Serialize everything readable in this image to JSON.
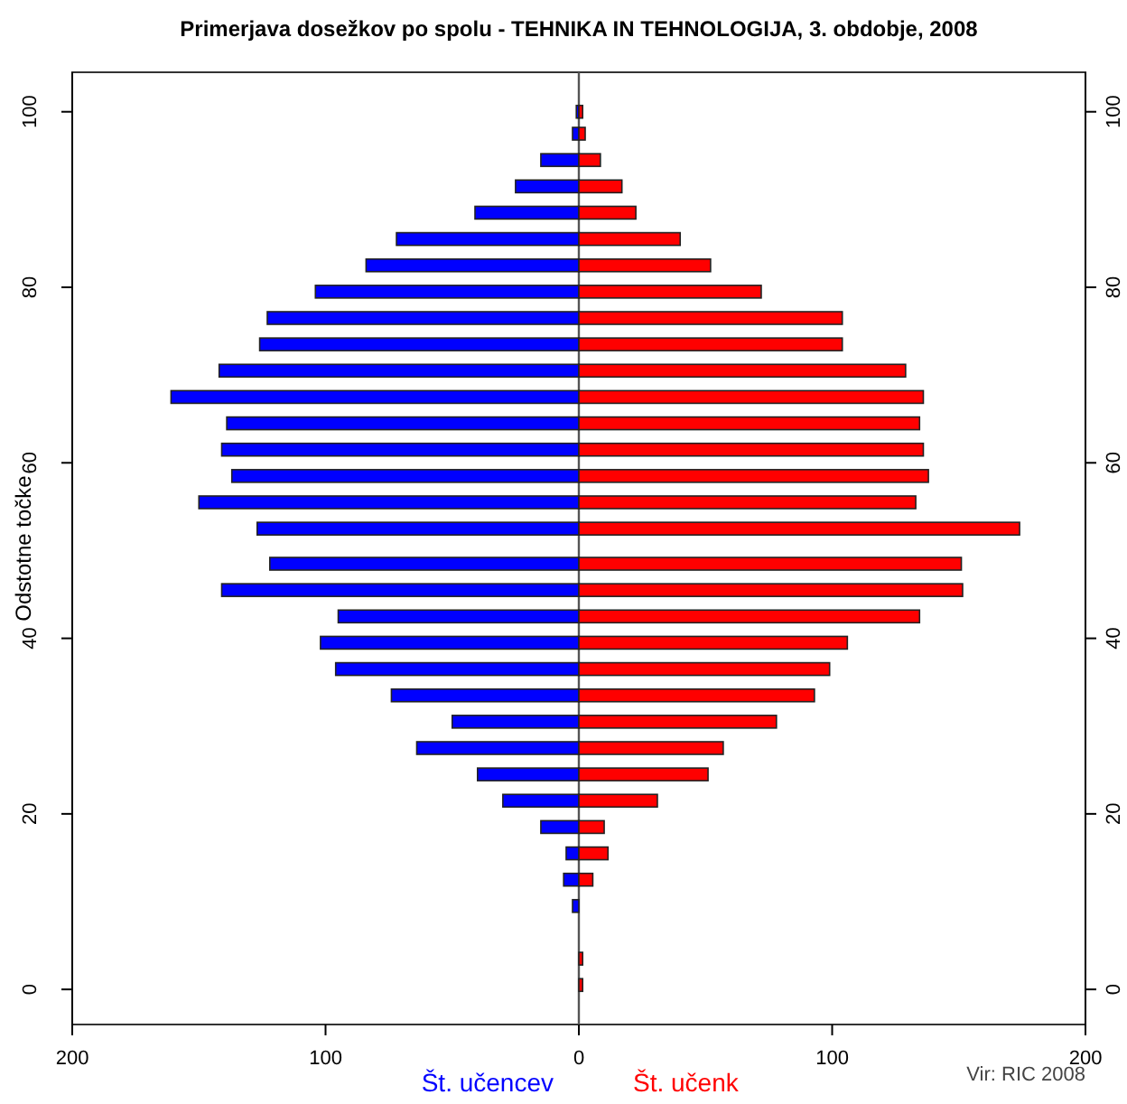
{
  "chart_data": {
    "type": "bar",
    "orientation": "horizontal",
    "stacked": true,
    "title": "Primerjava dosežkov po spolu - TEHNIKA IN TEHNOLOGIJA, 3. obdobje, 2008",
    "ylabel": "Odstotne točke",
    "x": [
      100,
      97.5,
      94.5,
      91.5,
      88.5,
      85.5,
      82.5,
      79.5,
      76.5,
      73.5,
      70.5,
      67.5,
      64.5,
      61.5,
      58.5,
      55.5,
      52.5,
      48.5,
      45.5,
      42.5,
      39.5,
      36.5,
      33.5,
      30.5,
      27.5,
      24.5,
      21.5,
      18.5,
      15.5,
      12.5,
      9.5,
      3.5,
      0.5
    ],
    "series": [
      {
        "name": "Št. učencev",
        "color": "#0000ff",
        "values": [
          -1,
          -2.5,
          -15,
          -25,
          -41,
          -72,
          -84,
          -104,
          -123,
          -126,
          -142,
          -161,
          -139,
          -141,
          -137,
          -150,
          -127,
          -122,
          -141,
          -95,
          -102,
          -96,
          -74,
          -50,
          -64,
          -40,
          -30,
          -15,
          -5,
          -6,
          -2.5,
          0,
          0
        ]
      },
      {
        "name": "Št. učenk",
        "color": "#ff0000",
        "values": [
          1.5,
          2.5,
          8.5,
          17,
          22.5,
          40,
          52,
          72,
          104,
          104,
          129,
          136,
          134.5,
          136,
          138,
          133,
          174,
          151,
          151.5,
          134.5,
          106,
          99,
          93,
          78,
          57,
          51,
          31,
          10,
          11.5,
          5.5,
          0,
          1.5,
          1.5
        ]
      }
    ],
    "xlim": [
      -200,
      200
    ],
    "xticks": [
      {
        "value": -200,
        "label": "200"
      },
      {
        "value": -100,
        "label": "100"
      },
      0,
      100,
      200
    ],
    "ylim": [
      -4,
      104.5
    ],
    "yticks": [
      0,
      20,
      40,
      60,
      80,
      100
    ],
    "y2lim": [
      -4,
      104.5
    ],
    "y2ticks": [
      0,
      20,
      40,
      60,
      80,
      100
    ],
    "ref_lines": [
      {
        "axis": "x",
        "value": 0,
        "color": "#555555"
      }
    ],
    "annotations": [
      "Vir: RIC 2008"
    ],
    "grid": false,
    "legend": false
  }
}
